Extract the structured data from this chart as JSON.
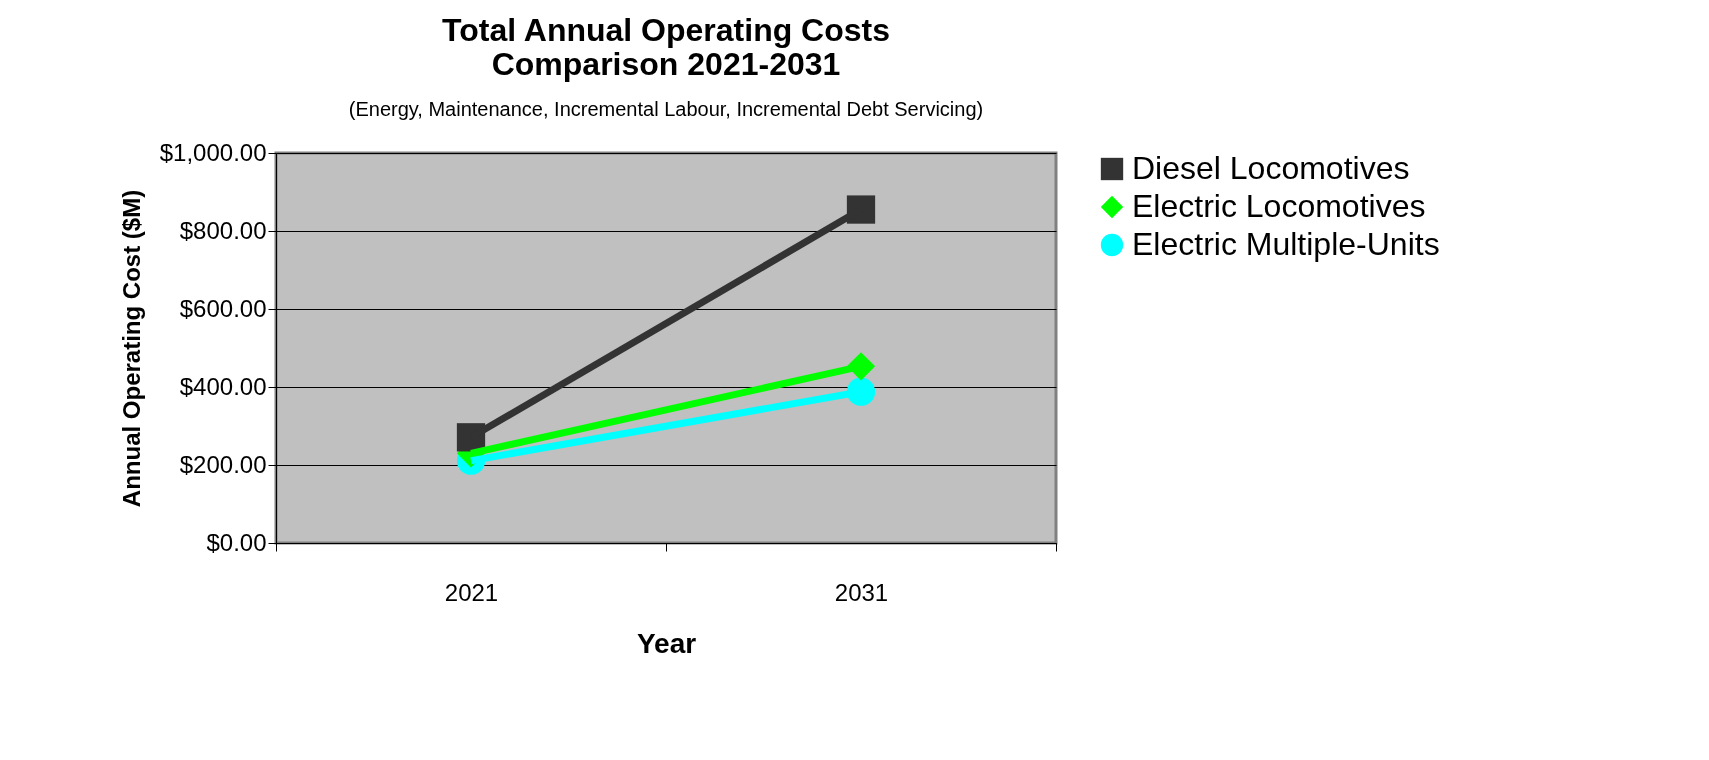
{
  "chart_data": {
    "type": "line",
    "title": [
      "Total Annual Operating Costs",
      "Comparison 2021-2031"
    ],
    "subtitle": "(Energy, Maintenance, Incremental Labour, Incremental Debt Servicing)",
    "xlabel": "Year",
    "ylabel": "Annual Operating Cost ($M)",
    "categories": [
      "2021",
      "2031"
    ],
    "series": [
      {
        "name": "Diesel Locomotives",
        "color": "#333333",
        "marker": "square",
        "values": [
          271,
          855
        ]
      },
      {
        "name": "Electric Locomotives",
        "color": "#00ff00",
        "marker": "diamond",
        "values": [
          230,
          453
        ]
      },
      {
        "name": "Electric Multiple-Units",
        "color": "#00ffff",
        "marker": "circle",
        "values": [
          211,
          388
        ]
      }
    ],
    "ylim": [
      0,
      1000
    ],
    "yticks": [
      {
        "value": 0,
        "label": "$0.00"
      },
      {
        "value": 200,
        "label": "$200.00"
      },
      {
        "value": 400,
        "label": "$400.00"
      },
      {
        "value": 600,
        "label": "$600.00"
      },
      {
        "value": 800,
        "label": "$800.00"
      },
      {
        "value": 1000,
        "label": "$1,000.00"
      }
    ],
    "grid": "y",
    "legend": "right",
    "line_style": "solid"
  }
}
